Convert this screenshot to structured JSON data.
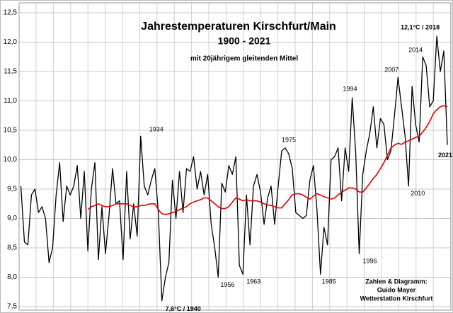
{
  "chart_data": {
    "type": "line",
    "title": "Jahrestemperaturen  Kirschfurt/Main",
    "subtitle": "1900 - 2021",
    "note": "mit 20jährigem gleitenden Mittel",
    "credit": [
      "Zahlen & Diagramm:",
      "Guido Mayer",
      "Wetterstation Kirschfurt"
    ],
    "x": [
      1900,
      1901,
      1902,
      1903,
      1904,
      1905,
      1906,
      1907,
      1908,
      1909,
      1910,
      1911,
      1912,
      1913,
      1914,
      1915,
      1916,
      1917,
      1918,
      1919,
      1920,
      1921,
      1922,
      1923,
      1924,
      1925,
      1926,
      1927,
      1928,
      1929,
      1930,
      1931,
      1932,
      1933,
      1934,
      1935,
      1936,
      1937,
      1938,
      1939,
      1940,
      1941,
      1942,
      1943,
      1944,
      1945,
      1946,
      1947,
      1948,
      1949,
      1950,
      1951,
      1952,
      1953,
      1954,
      1955,
      1956,
      1957,
      1958,
      1959,
      1960,
      1961,
      1962,
      1963,
      1964,
      1965,
      1966,
      1967,
      1968,
      1969,
      1970,
      1971,
      1972,
      1973,
      1974,
      1975,
      1976,
      1977,
      1978,
      1979,
      1980,
      1981,
      1982,
      1983,
      1984,
      1985,
      1986,
      1987,
      1988,
      1989,
      1990,
      1991,
      1992,
      1993,
      1994,
      1995,
      1996,
      1997,
      1998,
      1999,
      2000,
      2001,
      2002,
      2003,
      2004,
      2005,
      2006,
      2007,
      2008,
      2009,
      2010,
      2011,
      2012,
      2013,
      2014,
      2015,
      2016,
      2017,
      2018,
      2019,
      2020,
      2021
    ],
    "xlim": [
      1899.5,
      2022
    ],
    "series": [
      {
        "color": "#000000",
        "values": [
          9.55,
          8.6,
          8.55,
          9.4,
          9.5,
          9.1,
          9.2,
          9.0,
          8.25,
          8.5,
          9.4,
          9.95,
          8.95,
          9.55,
          9.4,
          9.55,
          9.9,
          9.0,
          9.8,
          8.45,
          9.5,
          9.95,
          8.3,
          9.2,
          8.4,
          9.05,
          9.85,
          9.25,
          9.3,
          8.3,
          9.8,
          8.65,
          9.25,
          8.7,
          10.4,
          9.55,
          9.4,
          9.65,
          9.85,
          9.1,
          7.6,
          8.0,
          8.25,
          9.65,
          9.0,
          9.8,
          9.1,
          9.85,
          9.8,
          10.05,
          9.5,
          9.8,
          9.4,
          9.75,
          8.9,
          8.5,
          8.0,
          9.6,
          9.45,
          9.9,
          9.75,
          10.05,
          8.2,
          8.05,
          9.4,
          8.55,
          9.55,
          9.75,
          9.45,
          8.9,
          9.35,
          9.55,
          8.9,
          9.55,
          10.15,
          10.2,
          10.1,
          9.85,
          9.1,
          9.05,
          9.0,
          9.05,
          9.65,
          9.9,
          9.15,
          8.05,
          8.85,
          8.55,
          10.0,
          10.05,
          10.2,
          9.3,
          10.2,
          9.8,
          11.05,
          10.1,
          8.4,
          9.75,
          10.15,
          10.45,
          10.9,
          10.2,
          10.7,
          10.6,
          10.0,
          10.15,
          10.75,
          11.4,
          10.9,
          10.4,
          9.55,
          11.25,
          10.6,
          10.3,
          11.75,
          11.6,
          10.9,
          11.0,
          12.1,
          11.5,
          11.85,
          10.25
        ]
      },
      {
        "color": "#e00000",
        "values": [
          null,
          null,
          null,
          null,
          null,
          null,
          null,
          null,
          null,
          null,
          null,
          null,
          null,
          null,
          null,
          null,
          null,
          null,
          null,
          9.15,
          9.2,
          9.22,
          9.25,
          9.22,
          9.2,
          9.2,
          9.22,
          9.25,
          9.25,
          9.25,
          9.25,
          9.22,
          9.2,
          9.2,
          9.22,
          9.22,
          9.24,
          9.25,
          9.25,
          9.15,
          9.08,
          9.07,
          9.08,
          9.1,
          9.12,
          9.15,
          9.18,
          9.2,
          9.25,
          9.28,
          9.3,
          9.32,
          9.35,
          9.35,
          9.3,
          9.25,
          9.2,
          9.17,
          9.17,
          9.2,
          9.28,
          9.35,
          9.33,
          9.3,
          9.32,
          9.3,
          9.3,
          9.3,
          9.28,
          9.25,
          9.23,
          9.22,
          9.2,
          9.18,
          9.18,
          9.25,
          9.32,
          9.4,
          9.42,
          9.42,
          9.4,
          9.36,
          9.33,
          9.38,
          9.42,
          9.4,
          9.37,
          9.35,
          9.33,
          9.35,
          9.4,
          9.45,
          9.48,
          9.52,
          9.52,
          9.5,
          9.45,
          9.45,
          9.52,
          9.6,
          9.68,
          9.75,
          9.85,
          9.95,
          10.08,
          10.2,
          10.25,
          10.28,
          10.26,
          10.3,
          10.32,
          10.35,
          10.38,
          10.4,
          10.47,
          10.55,
          10.65,
          10.78,
          10.85,
          10.9,
          10.92,
          10.9
        ]
      }
    ],
    "ylim": [
      7.5,
      12.5
    ],
    "yticks": [
      {
        "value": 7.5,
        "label": "7,5"
      },
      {
        "value": 8.0,
        "label": "8,0"
      },
      {
        "value": 8.5,
        "label": "8,5"
      },
      {
        "value": 9.0,
        "label": "9,0"
      },
      {
        "value": 9.5,
        "label": "9,5"
      },
      {
        "value": 10.0,
        "label": "10,0"
      },
      {
        "value": 10.5,
        "label": "10,5"
      },
      {
        "value": 11.0,
        "label": "11,0"
      },
      {
        "value": 11.5,
        "label": "11,5"
      },
      {
        "value": 12.0,
        "label": "12,0"
      },
      {
        "value": 12.5,
        "label": "12,5"
      }
    ],
    "grid": true,
    "annotations": [
      {
        "text": "1934",
        "x": 1934
      },
      {
        "text": "7,6°C / 1940",
        "x": 1940,
        "color": "#1f6fd0"
      },
      {
        "text": "1956",
        "x": 1956
      },
      {
        "text": "1963",
        "x": 1963
      },
      {
        "text": "1975",
        "x": 1975
      },
      {
        "text": "1985",
        "x": 1985
      },
      {
        "text": "1994",
        "x": 1994
      },
      {
        "text": "1996",
        "x": 1996
      },
      {
        "text": "2007",
        "x": 2007
      },
      {
        "text": "2010",
        "x": 2010
      },
      {
        "text": "2014",
        "x": 2014
      },
      {
        "text": "12,1°C / 2018",
        "x": 2018,
        "color": "#e00000"
      },
      {
        "text": "2021",
        "x": 2021
      }
    ]
  }
}
